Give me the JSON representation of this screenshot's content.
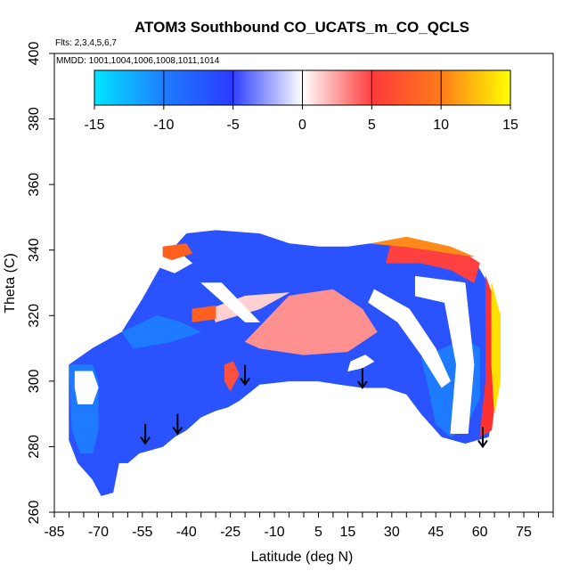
{
  "chart_data": {
    "type": "heatmap",
    "title": "ATOM3 Southbound CO_UCATS_m_CO_QCLS",
    "flights_note": "Flts: 2,3,4,5,6,7",
    "dates_note": "MMDD: 1001,1004,1006,1008,1011,1014",
    "xlabel": "Latitude (deg N)",
    "ylabel": "Theta (C)",
    "xlim": [
      -85,
      85
    ],
    "ylim": [
      260,
      400
    ],
    "x_ticks": [
      "-85",
      "-70",
      "-55",
      "-40",
      "-25",
      "-10",
      "5",
      "15",
      "30",
      "45",
      "60",
      "75"
    ],
    "x_tick_values": [
      -85,
      -70,
      -55,
      -40,
      -25,
      -10,
      5,
      15,
      30,
      45,
      60,
      75
    ],
    "x_minor_step": 5,
    "y_ticks": [
      "260",
      "280",
      "300",
      "320",
      "340",
      "360",
      "380",
      "400"
    ],
    "y_tick_values": [
      260,
      280,
      300,
      320,
      340,
      360,
      380,
      400
    ],
    "colorbar": {
      "min": -15,
      "max": 15,
      "ticks": [
        "-15",
        "-10",
        "-5",
        "0",
        "5",
        "10",
        "15"
      ],
      "tick_values": [
        -15,
        -10,
        -5,
        0,
        5,
        10,
        15
      ],
      "colors": [
        "#00e5ff",
        "#1e7bff",
        "#2a3cff",
        "#ffffff",
        "#ff3a3a",
        "#ff7a1a",
        "#ffff00"
      ]
    },
    "arrows": [
      {
        "lat": -54,
        "theta": 281
      },
      {
        "lat": -43,
        "theta": 284
      },
      {
        "lat": -20,
        "theta": 299
      },
      {
        "lat": 20,
        "theta": 298
      },
      {
        "lat": 61,
        "theta": 280
      }
    ],
    "regions": [
      {
        "color": "#2a52ff",
        "points": [
          [
            -80,
            305
          ],
          [
            -72,
            310
          ],
          [
            -62,
            315
          ],
          [
            -55,
            325
          ],
          [
            -50,
            333
          ],
          [
            -46,
            339
          ],
          [
            -40,
            345
          ],
          [
            -30,
            346
          ],
          [
            -15,
            345
          ],
          [
            -5,
            342
          ],
          [
            5,
            341
          ],
          [
            15,
            341
          ],
          [
            23,
            342
          ],
          [
            30,
            343
          ],
          [
            40,
            342
          ],
          [
            50,
            340
          ],
          [
            58,
            337
          ],
          [
            62,
            331
          ],
          [
            65,
            320
          ],
          [
            66,
            305
          ],
          [
            65,
            295
          ],
          [
            63,
            283
          ],
          [
            55,
            281
          ],
          [
            47,
            283
          ],
          [
            40,
            290
          ],
          [
            35,
            296
          ],
          [
            28,
            298
          ],
          [
            20,
            298
          ],
          [
            12,
            299
          ],
          [
            5,
            300
          ],
          [
            -5,
            300
          ],
          [
            -15,
            299
          ],
          [
            -22,
            294
          ],
          [
            -26,
            292
          ],
          [
            -30,
            291
          ],
          [
            -35,
            289
          ],
          [
            -40,
            285
          ],
          [
            -44,
            283
          ],
          [
            -48,
            280
          ],
          [
            -52,
            279
          ],
          [
            -56,
            278
          ],
          [
            -60,
            275
          ],
          [
            -63,
            275
          ],
          [
            -65,
            266
          ],
          [
            -69,
            265
          ],
          [
            -72,
            270
          ],
          [
            -77,
            275
          ],
          [
            -80,
            282
          ]
        ]
      },
      {
        "color": "#1e7bff",
        "points": [
          [
            -80,
            305
          ],
          [
            -72,
            305
          ],
          [
            -70,
            300
          ],
          [
            -70,
            285
          ],
          [
            -72,
            278
          ],
          [
            -76,
            278
          ],
          [
            -79,
            285
          ]
        ]
      },
      {
        "color": "#1e7bff",
        "points": [
          [
            40,
            307
          ],
          [
            55,
            313
          ],
          [
            60,
            310
          ],
          [
            60,
            295
          ],
          [
            55,
            285
          ],
          [
            50,
            283
          ],
          [
            45,
            287
          ],
          [
            42,
            300
          ]
        ]
      },
      {
        "color": "#1e7bff",
        "points": [
          [
            -62,
            315
          ],
          [
            -50,
            320
          ],
          [
            -42,
            318
          ],
          [
            -35,
            315
          ],
          [
            -45,
            312
          ],
          [
            -58,
            310
          ]
        ]
      },
      {
        "color": "#ff9090",
        "points": [
          [
            -20,
            312
          ],
          [
            -5,
            326
          ],
          [
            10,
            328
          ],
          [
            20,
            322
          ],
          [
            25,
            315
          ],
          [
            15,
            309
          ],
          [
            0,
            308
          ],
          [
            -15,
            310
          ]
        ]
      },
      {
        "color": "#ffd0d0",
        "points": [
          [
            -30,
            318
          ],
          [
            -15,
            322
          ],
          [
            -5,
            327
          ],
          [
            -20,
            326
          ],
          [
            -32,
            322
          ]
        ]
      },
      {
        "color": "#ffffff",
        "points": [
          [
            -78,
            303
          ],
          [
            -72,
            303
          ],
          [
            -70,
            298
          ],
          [
            -72,
            293
          ],
          [
            -77,
            293
          ],
          [
            -78,
            298
          ]
        ]
      },
      {
        "color": "#ffffff",
        "points": [
          [
            -50,
            340
          ],
          [
            -42,
            339
          ],
          [
            -38,
            336
          ],
          [
            -44,
            333
          ],
          [
            -50,
            335
          ]
        ]
      },
      {
        "color": "#ffffff",
        "points": [
          [
            -35,
            330
          ],
          [
            -20,
            318
          ],
          [
            -15,
            318
          ],
          [
            -28,
            330
          ]
        ]
      },
      {
        "color": "#ffffff",
        "points": [
          [
            15,
            303
          ],
          [
            20,
            304
          ],
          [
            24,
            306
          ],
          [
            21,
            308
          ],
          [
            16,
            306
          ]
        ]
      },
      {
        "color": "#ffffff",
        "points": [
          [
            38,
            332
          ],
          [
            55,
            330
          ],
          [
            58,
            305
          ],
          [
            56,
            284
          ],
          [
            50,
            284
          ],
          [
            52,
            305
          ],
          [
            48,
            324
          ],
          [
            38,
            326
          ]
        ]
      },
      {
        "color": "#ffffff",
        "points": [
          [
            24,
            328
          ],
          [
            36,
            322
          ],
          [
            45,
            310
          ],
          [
            50,
            300
          ],
          [
            47,
            298
          ],
          [
            40,
            308
          ],
          [
            32,
            318
          ],
          [
            22,
            324
          ]
        ]
      },
      {
        "color": "#ff4040",
        "points": [
          [
            30,
            343
          ],
          [
            45,
            342
          ],
          [
            55,
            339
          ],
          [
            60,
            336
          ],
          [
            58,
            330
          ],
          [
            50,
            334
          ],
          [
            40,
            336
          ],
          [
            28,
            336
          ]
        ]
      },
      {
        "color": "#ff6020",
        "points": [
          [
            -48,
            341
          ],
          [
            -40,
            342
          ],
          [
            -38,
            339
          ],
          [
            -45,
            337
          ],
          [
            -48,
            338
          ]
        ]
      },
      {
        "color": "#ff6020",
        "points": [
          [
            -38,
            322
          ],
          [
            -30,
            323
          ],
          [
            -30,
            319
          ],
          [
            -38,
            318
          ]
        ]
      },
      {
        "color": "#ff3030",
        "points": [
          [
            62,
            332
          ],
          [
            66,
            322
          ],
          [
            66,
            300
          ],
          [
            64,
            285
          ],
          [
            60,
            283
          ],
          [
            62,
            300
          ],
          [
            62,
            318
          ]
        ]
      },
      {
        "color": "#ffe000",
        "points": [
          [
            64,
            330
          ],
          [
            67,
            320
          ],
          [
            67,
            300
          ],
          [
            65,
            290
          ],
          [
            64,
            305
          ],
          [
            64,
            318
          ]
        ]
      },
      {
        "color": "#ff8a1a",
        "points": [
          [
            23,
            342
          ],
          [
            35,
            344
          ],
          [
            50,
            341
          ],
          [
            58,
            338
          ],
          [
            50,
            339
          ],
          [
            35,
            341
          ]
        ]
      },
      {
        "color": "#ff5040",
        "points": [
          [
            -27,
            305
          ],
          [
            -24,
            306
          ],
          [
            -22,
            302
          ],
          [
            -25,
            297
          ],
          [
            -27,
            300
          ]
        ]
      }
    ]
  }
}
